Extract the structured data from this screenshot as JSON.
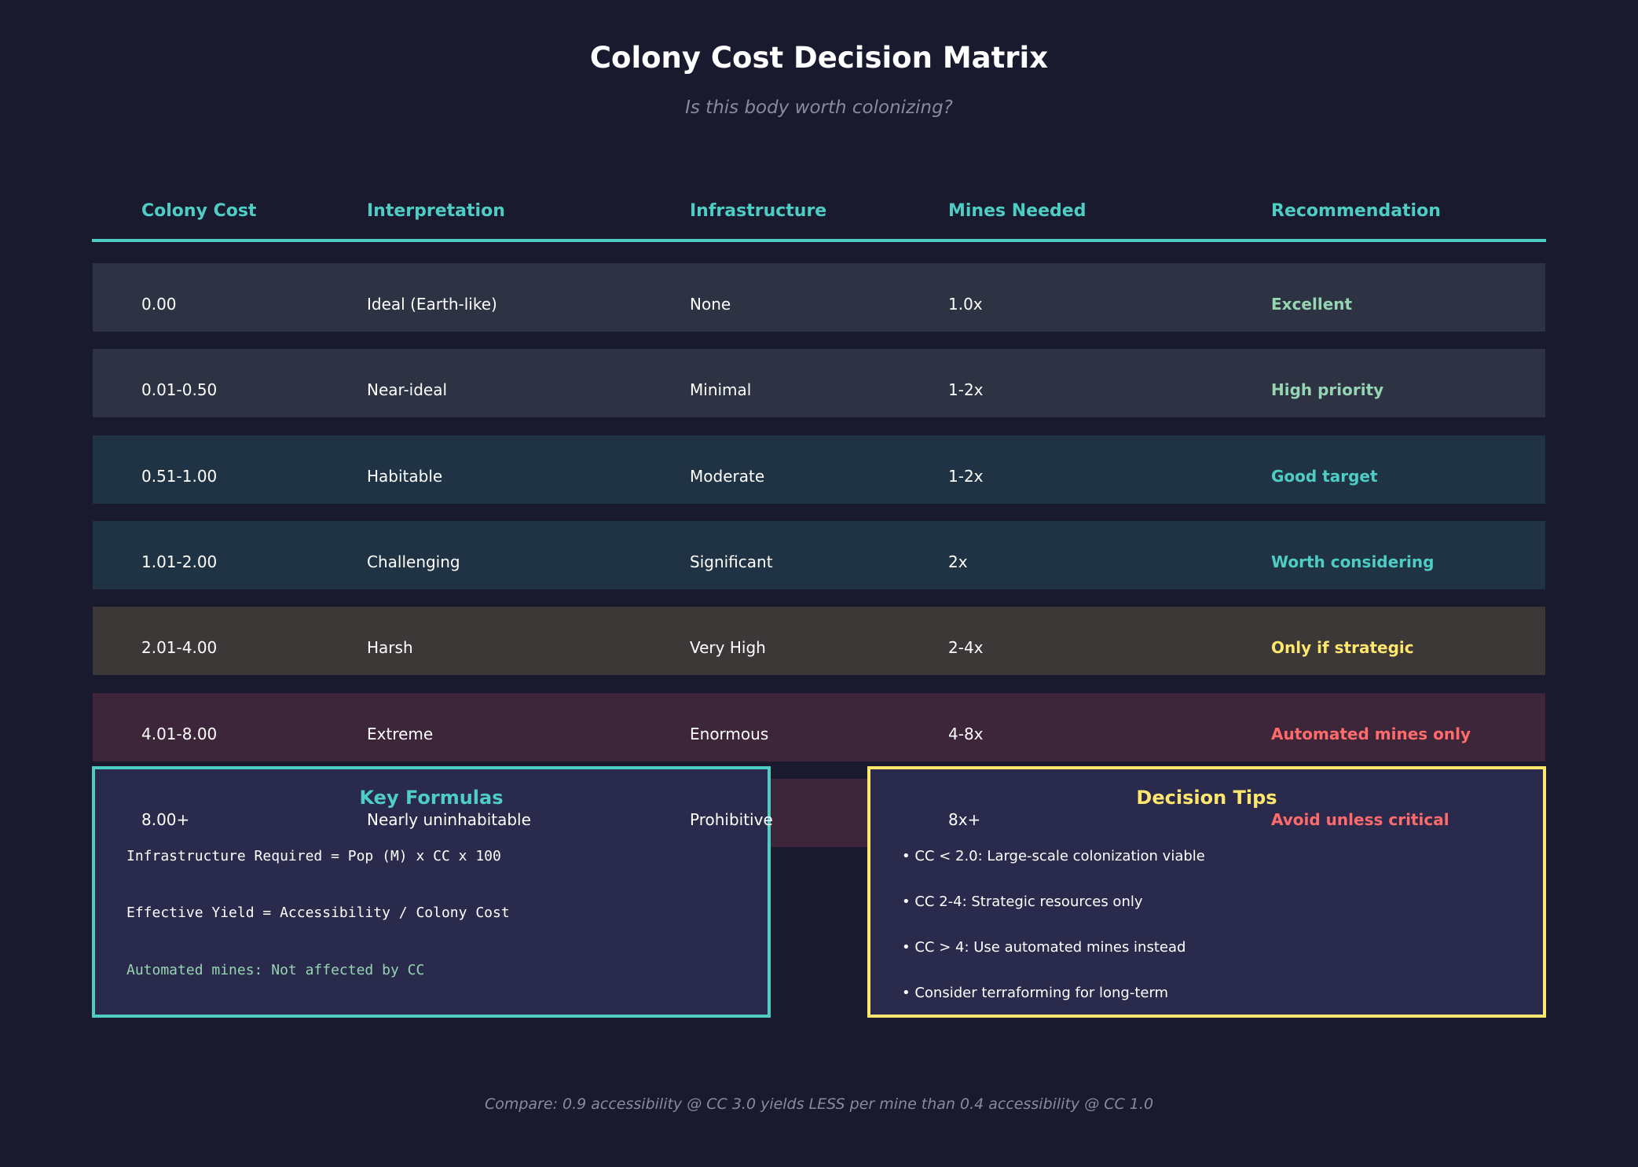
{
  "title": "Colony Cost Decision Matrix",
  "subtitle": "Is this body worth colonizing?",
  "table": {
    "headers": [
      "Colony Cost",
      "Interpretation",
      "Infrastructure",
      "Mines Needed",
      "Recommendation"
    ],
    "rows": [
      {
        "cost": "0.00",
        "interpretation": "Ideal (Earth-like)",
        "infrastructure": "None",
        "mines": "1.0x",
        "recommendation": "Excellent",
        "row_color": "#2d3343",
        "rec_color": "#95d5b2"
      },
      {
        "cost": "0.01-0.50",
        "interpretation": "Near-ideal",
        "infrastructure": "Minimal",
        "mines": "1-2x",
        "recommendation": "High priority",
        "row_color": "#2d3343",
        "rec_color": "#95d5b2"
      },
      {
        "cost": "0.51-1.00",
        "interpretation": "Habitable",
        "infrastructure": "Moderate",
        "mines": "1-2x",
        "recommendation": "Good target",
        "row_color": "#203344",
        "rec_color": "#4ecdc4"
      },
      {
        "cost": "1.01-2.00",
        "interpretation": "Challenging",
        "infrastructure": "Significant",
        "mines": "2x",
        "recommendation": "Worth considering",
        "row_color": "#203344",
        "rec_color": "#4ecdc4"
      },
      {
        "cost": "2.01-4.00",
        "interpretation": "Harsh",
        "infrastructure": "Very High",
        "mines": "2-4x",
        "recommendation": "Only if strategic",
        "row_color": "#3d3838",
        "rec_color": "#ffe66d"
      },
      {
        "cost": "4.01-8.00",
        "interpretation": "Extreme",
        "infrastructure": "Enormous",
        "mines": "4-8x",
        "recommendation": "Automated mines only",
        "row_color": "#3d2639",
        "rec_color": "#ff6b6b"
      },
      {
        "cost": "8.00+",
        "interpretation": "Nearly uninhabitable",
        "infrastructure": "Prohibitive",
        "mines": "8x+",
        "recommendation": "Avoid unless critical",
        "row_color": "#3d2639",
        "rec_color": "#ff6b6b"
      }
    ]
  },
  "formulas": {
    "title": "Key Formulas",
    "lines": [
      "Infrastructure Required = Pop (M) x CC x 100",
      "Effective Yield = Accessibility / Colony Cost"
    ],
    "note": "Automated mines: Not affected by CC",
    "border_color": "#4ecdc4"
  },
  "tips": {
    "title": "Decision Tips",
    "items": [
      "• CC < 2.0: Large-scale colonization viable",
      "• CC 2-4: Strategic resources only",
      "• CC > 4: Use automated mines instead",
      "• Consider terraforming for long-term"
    ],
    "border_color": "#ffe66d"
  },
  "footer": "Compare: 0.9 accessibility @ CC 3.0 yields LESS per mine than 0.4 accessibility @ CC 1.0"
}
